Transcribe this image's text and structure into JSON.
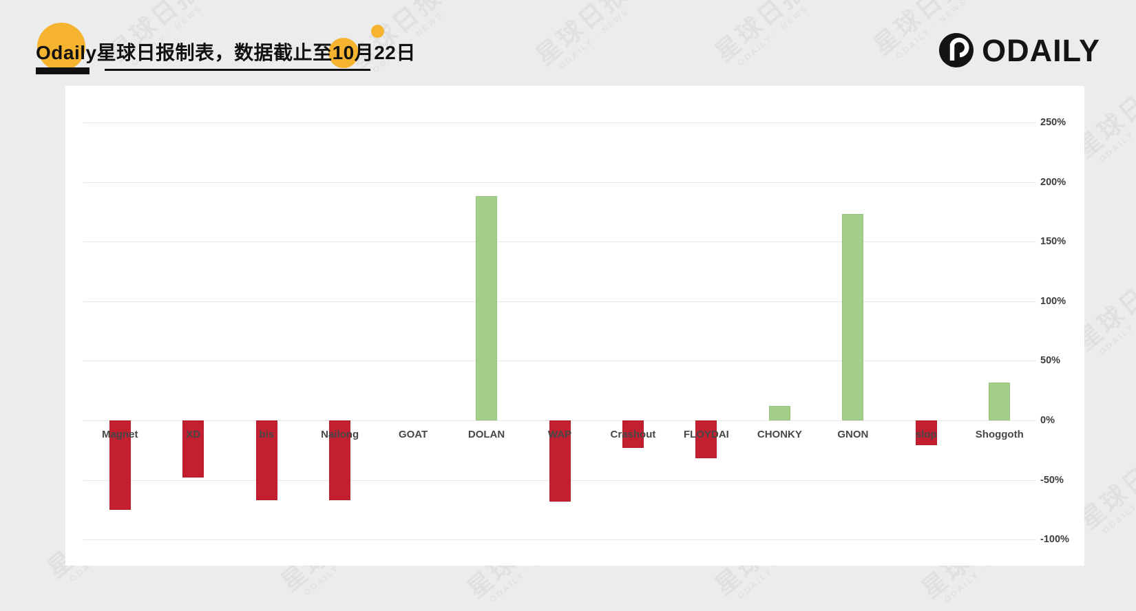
{
  "header": {
    "title": "Odaily星球日报制表，数据截止至10月22日",
    "logo_text": "ODAILY"
  },
  "watermark": {
    "cn": "星球日报",
    "en": "ODAILY · NEWS"
  },
  "chart_data": {
    "type": "bar",
    "title": "",
    "categories": [
      "Magnet",
      "XD",
      "bis",
      "Nailong",
      "GOAT",
      "DOLAN",
      "WAP",
      "Crashout",
      "FLOYDAI",
      "CHONKY",
      "GNON",
      "slop",
      "Shoggoth"
    ],
    "values": [
      -75,
      -48,
      -67,
      -67,
      0,
      188,
      -68,
      -23,
      -32,
      12,
      173,
      -21,
      32
    ],
    "unit": "%",
    "ylim": [
      -100,
      250
    ],
    "ytick_step": 50,
    "yticks": [
      "250%",
      "200%",
      "150%",
      "100%",
      "50%",
      "0%",
      "-50%",
      "-100%"
    ],
    "grid": true,
    "axis_side": "right",
    "colors": {
      "positive": "#a3cf88",
      "negative": "#c22030",
      "gridline": "#e7e7e7",
      "tick_text": "#3c3c3c",
      "category_text": "#474747"
    }
  },
  "page_colors": {
    "background": "#ececec",
    "panel": "#ffffff",
    "accent_yellow": "#f5b32f",
    "title_text": "#111111"
  }
}
